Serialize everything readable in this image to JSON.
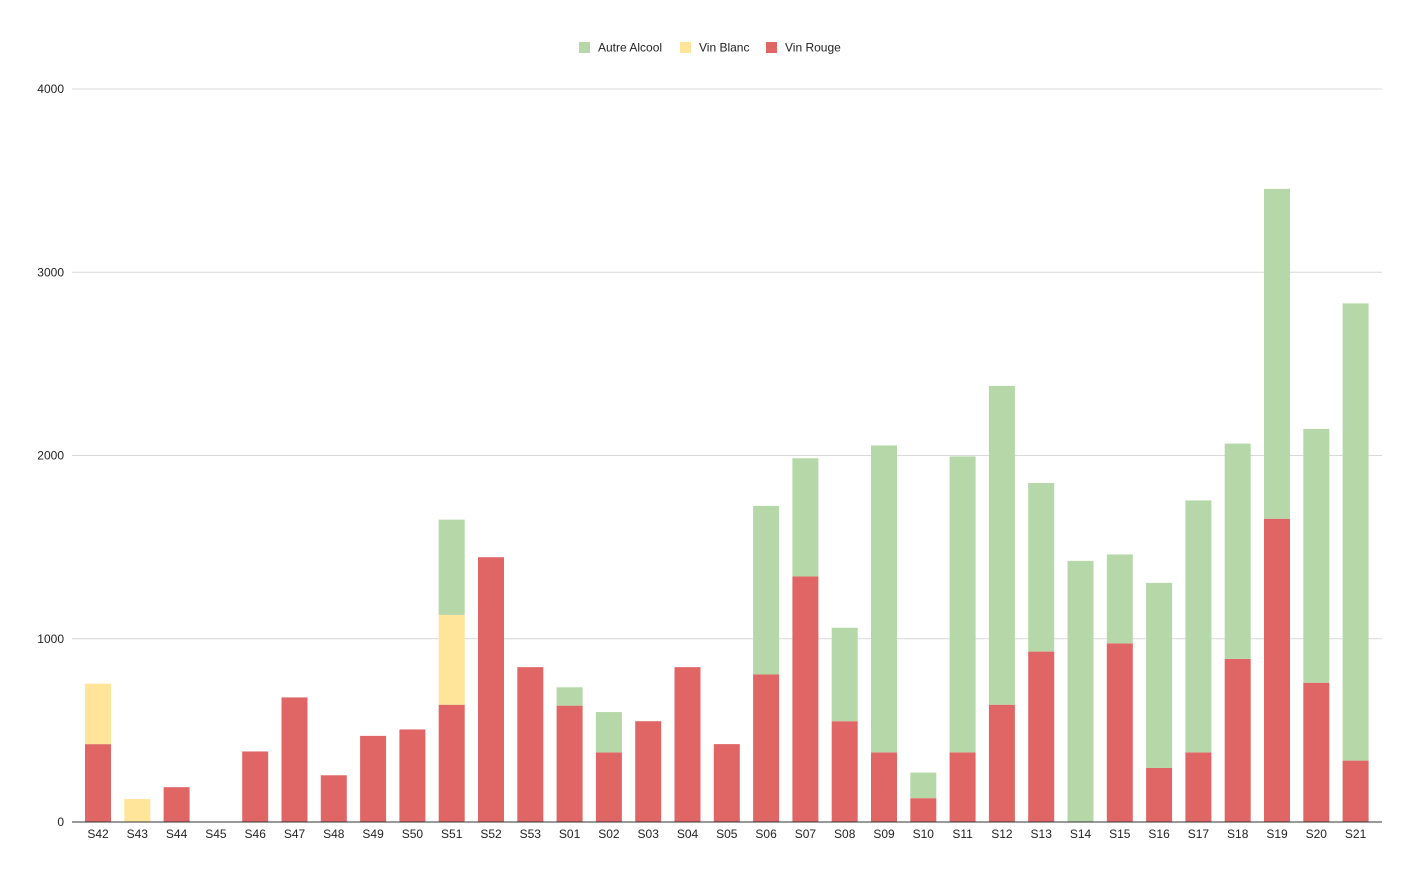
{
  "chart_data": {
    "type": "bar",
    "stacked": true,
    "title": "",
    "xlabel": "",
    "ylabel": "",
    "ylim": [
      0,
      4000
    ],
    "yticks": [
      0,
      1000,
      2000,
      3000,
      4000
    ],
    "grid": true,
    "legend_position": "top-center",
    "categories": [
      "S42",
      "S43",
      "S44",
      "S45",
      "S46",
      "S47",
      "S48",
      "S49",
      "S50",
      "S51",
      "S52",
      "S53",
      "S01",
      "S02",
      "S03",
      "S04",
      "S05",
      "S06",
      "S07",
      "S08",
      "S09",
      "S10",
      "S11",
      "S12",
      "S13",
      "S14",
      "S15",
      "S16",
      "S17",
      "S18",
      "S19",
      "S20",
      "S21"
    ],
    "series": [
      {
        "name": "Vin Rouge",
        "color": "#e06666",
        "values": [
          425,
          0,
          190,
          0,
          385,
          680,
          255,
          470,
          505,
          640,
          1445,
          845,
          635,
          380,
          550,
          845,
          425,
          805,
          1340,
          550,
          380,
          130,
          380,
          640,
          930,
          0,
          975,
          295,
          380,
          890,
          1655,
          760,
          335
        ]
      },
      {
        "name": "Vin Blanc",
        "color": "#ffe599",
        "values": [
          330,
          125,
          0,
          0,
          0,
          0,
          0,
          0,
          0,
          490,
          0,
          0,
          0,
          0,
          0,
          0,
          0,
          0,
          0,
          0,
          0,
          0,
          0,
          0,
          0,
          0,
          0,
          0,
          0,
          0,
          0,
          0,
          0
        ]
      },
      {
        "name": "Autre Alcool",
        "color": "#b6d7a8",
        "values": [
          0,
          0,
          0,
          0,
          0,
          0,
          0,
          0,
          0,
          520,
          0,
          0,
          100,
          220,
          0,
          0,
          0,
          920,
          645,
          510,
          1675,
          140,
          1615,
          1740,
          920,
          1425,
          485,
          1010,
          1375,
          1175,
          1800,
          1385,
          2495
        ]
      }
    ],
    "legend_order": [
      "Autre Alcool",
      "Vin Blanc",
      "Vin Rouge"
    ]
  }
}
